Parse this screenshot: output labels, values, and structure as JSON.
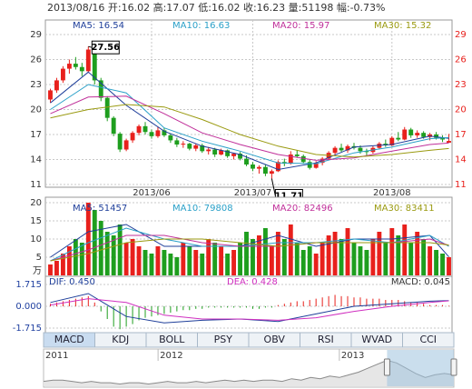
{
  "header": {
    "text": "2013/08/16 开:16.02 高:17.07 低:16.02 收:16.23 量:51198 幅:-0.73%"
  },
  "tabs": [
    "MACD",
    "KDJ",
    "BOLL",
    "PSY",
    "OBV",
    "RSI",
    "WVAD",
    "CCI"
  ],
  "chart_data": [
    {
      "type": "candlestick",
      "up_color": "#e8201c",
      "down_color": "#1e9e1e",
      "ohlc": [
        [
          21.2,
          22.5,
          20.8,
          22.3
        ],
        [
          22.3,
          23.8,
          22.0,
          23.5
        ],
        [
          23.5,
          25.2,
          23.2,
          24.9
        ],
        [
          24.9,
          26.0,
          24.3,
          25.5
        ],
        [
          25.5,
          26.3,
          24.8,
          25.1
        ],
        [
          25.1,
          25.6,
          24.0,
          24.6
        ],
        [
          24.6,
          27.56,
          24.4,
          27.2
        ],
        [
          27.2,
          27.4,
          23.0,
          23.5
        ],
        [
          23.5,
          23.8,
          21.0,
          21.4
        ],
        [
          21.4,
          21.6,
          18.6,
          19.0
        ],
        [
          19.0,
          19.2,
          16.8,
          17.1
        ],
        [
          17.1,
          17.3,
          14.9,
          15.2
        ],
        [
          15.2,
          16.5,
          15.0,
          16.3
        ],
        [
          16.3,
          17.4,
          16.0,
          17.2
        ],
        [
          17.2,
          18.2,
          16.9,
          18.0
        ],
        [
          18.0,
          18.5,
          17.0,
          17.3
        ],
        [
          17.3,
          17.6,
          16.5,
          16.8
        ],
        [
          16.8,
          17.9,
          16.6,
          17.5
        ],
        [
          17.5,
          17.8,
          16.7,
          16.9
        ],
        [
          16.9,
          17.1,
          16.0,
          16.3
        ],
        [
          16.3,
          16.6,
          15.5,
          15.8
        ],
        [
          15.8,
          16.2,
          15.4,
          15.9
        ],
        [
          15.9,
          16.0,
          15.1,
          15.3
        ],
        [
          15.3,
          15.9,
          15.0,
          15.7
        ],
        [
          15.7,
          15.9,
          14.8,
          15.0
        ],
        [
          15.0,
          15.5,
          14.6,
          15.2
        ],
        [
          15.2,
          15.4,
          14.3,
          14.6
        ],
        [
          14.6,
          15.3,
          14.5,
          15.1
        ],
        [
          15.1,
          15.2,
          14.2,
          14.4
        ],
        [
          14.4,
          14.8,
          14.0,
          14.7
        ],
        [
          14.7,
          14.9,
          13.9,
          14.1
        ],
        [
          14.1,
          14.5,
          13.2,
          13.4
        ],
        [
          13.4,
          13.7,
          12.6,
          12.9
        ],
        [
          12.9,
          13.3,
          12.3,
          13.1
        ],
        [
          13.1,
          13.4,
          12.0,
          12.3
        ],
        [
          12.3,
          12.8,
          11.71,
          12.6
        ],
        [
          12.6,
          13.9,
          12.5,
          13.7
        ],
        [
          13.7,
          14.1,
          13.2,
          13.5
        ],
        [
          13.5,
          15.0,
          13.4,
          14.6
        ],
        [
          14.6,
          15.1,
          14.2,
          14.4
        ],
        [
          14.4,
          14.6,
          13.5,
          13.7
        ],
        [
          13.7,
          14.0,
          12.8,
          13.0
        ],
        [
          13.0,
          13.8,
          12.9,
          13.6
        ],
        [
          13.6,
          14.3,
          13.3,
          14.1
        ],
        [
          14.1,
          15.0,
          13.9,
          14.8
        ],
        [
          14.8,
          15.6,
          14.6,
          15.4
        ],
        [
          15.4,
          15.9,
          14.9,
          15.1
        ],
        [
          15.1,
          15.8,
          14.8,
          15.6
        ],
        [
          15.6,
          16.0,
          15.2,
          15.4
        ],
        [
          15.4,
          15.7,
          14.7,
          15.0
        ],
        [
          15.0,
          15.3,
          14.5,
          14.9
        ],
        [
          14.9,
          15.6,
          14.7,
          15.4
        ],
        [
          15.4,
          16.1,
          15.2,
          15.9
        ],
        [
          15.9,
          16.4,
          15.5,
          15.7
        ],
        [
          15.7,
          16.8,
          15.6,
          16.6
        ],
        [
          16.6,
          17.3,
          16.2,
          16.4
        ],
        [
          16.4,
          17.9,
          16.3,
          17.6
        ],
        [
          17.6,
          17.8,
          16.6,
          16.9
        ],
        [
          16.9,
          17.5,
          16.6,
          17.2
        ],
        [
          17.2,
          17.4,
          16.5,
          16.7
        ],
        [
          16.7,
          17.2,
          16.3,
          17.0
        ],
        [
          17.0,
          17.3,
          16.4,
          16.6
        ],
        [
          16.6,
          16.9,
          16.1,
          16.4
        ],
        [
          16.02,
          17.07,
          16.02,
          16.23
        ]
      ],
      "series": [
        {
          "name": "MA5: 16.54",
          "color": "#1f3f9a",
          "x": [
            0,
            6,
            12,
            18,
            24,
            30,
            36,
            42,
            48,
            54,
            60,
            63
          ],
          "values": [
            20.8,
            24.5,
            20.5,
            17.4,
            15.6,
            14.6,
            12.8,
            13.6,
            15.5,
            15.8,
            16.8,
            16.54
          ]
        },
        {
          "name": "MA10: 16.63",
          "color": "#2aa0c8",
          "x": [
            0,
            6,
            12,
            18,
            24,
            30,
            36,
            42,
            48,
            54,
            60,
            63
          ],
          "values": [
            20.0,
            23.0,
            22.0,
            17.8,
            16.2,
            15.0,
            13.6,
            13.5,
            14.8,
            15.5,
            16.5,
            16.63
          ]
        },
        {
          "name": "MA20: 15.97",
          "color": "#c0309a",
          "x": [
            0,
            6,
            12,
            18,
            24,
            30,
            36,
            42,
            48,
            54,
            60,
            63
          ],
          "values": [
            19.5,
            21.5,
            21.6,
            19.5,
            17.2,
            15.8,
            14.6,
            13.9,
            14.2,
            15.0,
            15.8,
            15.97
          ]
        },
        {
          "name": "MA30: 15.32",
          "color": "#9a9a10",
          "x": [
            0,
            6,
            12,
            18,
            24,
            30,
            36,
            42,
            48,
            54,
            60,
            63
          ],
          "values": [
            19.0,
            20.0,
            20.6,
            20.3,
            18.8,
            17.0,
            15.6,
            14.6,
            14.3,
            14.6,
            15.1,
            15.32
          ]
        }
      ],
      "annotations": [
        {
          "x": 6,
          "value": 27.56
        },
        {
          "x": 35,
          "value": 11.71
        }
      ],
      "xticks": [
        {
          "value": 16,
          "label": "2013/06"
        },
        {
          "value": 32,
          "label": "2013/07"
        },
        {
          "value": 54,
          "label": "2013/08"
        }
      ],
      "ylim": [
        11,
        29
      ],
      "yticks": [
        29,
        26,
        23,
        20,
        17,
        14,
        11
      ],
      "right_axis": true,
      "grid": true
    },
    {
      "type": "bar",
      "unit": "万",
      "values": [
        3,
        4,
        6,
        8,
        10,
        9,
        20,
        18,
        15,
        12,
        11,
        14,
        9,
        10,
        8,
        7,
        6,
        8,
        7,
        6,
        5,
        9,
        8,
        7,
        6,
        10,
        9,
        8,
        6,
        7,
        9,
        12,
        10,
        11,
        13,
        8,
        12,
        10,
        14,
        9,
        7,
        8,
        6,
        9,
        11,
        12,
        10,
        13,
        9,
        8,
        7,
        10,
        12,
        9,
        13,
        11,
        14,
        9,
        12,
        10,
        8,
        7,
        6,
        5
      ],
      "series": [
        {
          "name": "MA5: 51457",
          "color": "#1f3f9a",
          "x": [
            0,
            6,
            12,
            18,
            24,
            30,
            36,
            42,
            48,
            54,
            60,
            63
          ],
          "values": [
            5,
            12,
            14,
            8,
            8,
            8,
            11,
            8,
            10,
            10,
            11,
            5.1
          ]
        },
        {
          "name": "MA10: 79808",
          "color": "#2aa0c8",
          "x": [
            0,
            6,
            12,
            18,
            24,
            30,
            36,
            42,
            48,
            54,
            60,
            63
          ],
          "values": [
            4,
            9,
            13,
            10,
            8,
            8,
            9,
            9,
            10,
            9,
            11,
            7.98
          ]
        },
        {
          "name": "MA20: 82496",
          "color": "#c0309a",
          "x": [
            0,
            6,
            12,
            18,
            24,
            30,
            36,
            42,
            48,
            54,
            60,
            63
          ],
          "values": [
            4,
            7,
            11,
            11,
            9,
            8,
            8,
            9,
            9,
            9,
            10,
            8.25
          ]
        },
        {
          "name": "MA30: 83411",
          "color": "#9a9a10",
          "x": [
            0,
            6,
            12,
            18,
            24,
            30,
            36,
            42,
            48,
            54,
            60,
            63
          ],
          "values": [
            4,
            6,
            9,
            10,
            10,
            9,
            8,
            9,
            9,
            9,
            9,
            8.34
          ]
        }
      ],
      "ylim": [
        0,
        20
      ],
      "yticks": [
        20,
        15,
        10,
        5
      ],
      "grid": true
    },
    {
      "type": "macd",
      "series": [
        {
          "name": "DIF: 0.450",
          "color": "#1f3f9a",
          "x": [
            0,
            6,
            12,
            18,
            24,
            30,
            36,
            42,
            48,
            54,
            60,
            63
          ],
          "values": [
            0.3,
            1.0,
            -0.8,
            -1.3,
            -1.1,
            -1.0,
            -1.2,
            -0.6,
            0.0,
            0.2,
            0.4,
            0.45
          ]
        },
        {
          "name": "DEA: 0.428",
          "color": "#d030c0",
          "x": [
            0,
            6,
            12,
            18,
            24,
            30,
            36,
            42,
            48,
            54,
            60,
            63
          ],
          "values": [
            0.1,
            0.6,
            0.3,
            -0.7,
            -1.0,
            -1.0,
            -1.1,
            -0.9,
            -0.4,
            0.0,
            0.3,
            0.428
          ]
        }
      ],
      "histogram": {
        "name": "MACD: 0.045",
        "up_color": "#e8201c",
        "down_color": "#1e9e1e",
        "values": [
          0.2,
          0.3,
          0.4,
          0.5,
          0.6,
          0.7,
          0.8,
          0.3,
          -0.4,
          -1.0,
          -1.6,
          -1.8,
          -1.6,
          -1.4,
          -1.1,
          -0.9,
          -0.8,
          -0.7,
          -0.6,
          -0.5,
          -0.4,
          -0.3,
          -0.3,
          -0.2,
          -0.2,
          -0.1,
          -0.1,
          -0.1,
          -0.1,
          -0.1,
          -0.1,
          -0.1,
          -0.2,
          -0.2,
          -0.1,
          -0.1,
          0.1,
          0.2,
          0.3,
          0.4,
          0.4,
          0.5,
          0.6,
          0.7,
          0.8,
          0.9,
          0.8,
          0.8,
          0.7,
          0.7,
          0.6,
          0.6,
          0.6,
          0.5,
          0.5,
          0.5,
          0.4,
          0.3,
          0.3,
          0.2,
          0.1,
          0.1,
          0.1,
          0.045
        ]
      },
      "ylim": [
        -2.0,
        2.29
      ],
      "yticks": [
        1.715,
        {
          "value": 0,
          "label": "0.000"
        },
        -1.715
      ],
      "grid": true
    },
    {
      "type": "area",
      "color": "#8a8a8a",
      "values": [
        11,
        12,
        12,
        11,
        10,
        11,
        10,
        10,
        9,
        10,
        10,
        9,
        10,
        11,
        10,
        10,
        11,
        10,
        11,
        12,
        11,
        12,
        11,
        12,
        12,
        11,
        13,
        12,
        14,
        13,
        15,
        14,
        16,
        18,
        21,
        24,
        27,
        25,
        21,
        17,
        14,
        16,
        17,
        16
      ],
      "ylim": [
        8,
        30
      ],
      "xticks": [
        {
          "value": 0,
          "label": "2011"
        },
        {
          "value": 12,
          "label": "2012"
        },
        {
          "value": 31,
          "label": "2013"
        }
      ],
      "selection": [
        36,
        43
      ]
    }
  ]
}
